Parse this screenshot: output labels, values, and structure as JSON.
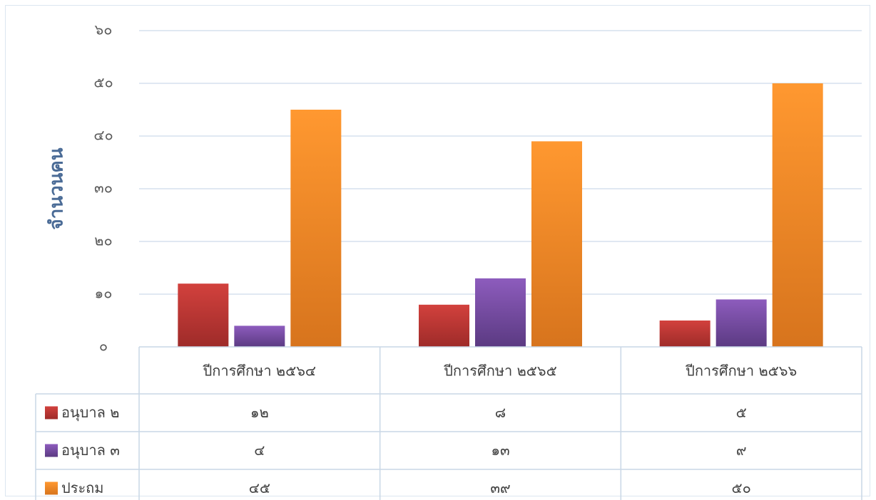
{
  "chart_data": {
    "type": "bar",
    "ylabel": "จำนวนคน",
    "xlabel": "",
    "ylim": [
      0,
      60
    ],
    "yticks": [
      "๐",
      "๑๐",
      "๒๐",
      "๓๐",
      "๔๐",
      "๕๐",
      "๖๐"
    ],
    "categories": [
      "ปีการศึกษา ๒๕๖๔",
      "ปีการศึกษา ๒๕๖๕",
      "ปีการศึกษา ๒๕๖๖"
    ],
    "series": [
      {
        "name": "อนุบาล ๒",
        "values": [
          12,
          8,
          5
        ],
        "labels": [
          "๑๒",
          "๘",
          "๕"
        ]
      },
      {
        "name": "อนุบาล ๓",
        "values": [
          4,
          13,
          9
        ],
        "labels": [
          "๔",
          "๑๓",
          "๙"
        ]
      },
      {
        "name": "ประถม",
        "values": [
          45,
          39,
          50
        ],
        "labels": [
          "๔๕",
          "๓๙",
          "๕๐"
        ]
      }
    ],
    "colors": [
      {
        "top": "#d2413d",
        "bottom": "#9e2b29"
      },
      {
        "top": "#8d5cbd",
        "bottom": "#5b3a82"
      },
      {
        "top": "#ff9830",
        "bottom": "#d7741d"
      }
    ],
    "grid": true,
    "legend": "data-table"
  }
}
